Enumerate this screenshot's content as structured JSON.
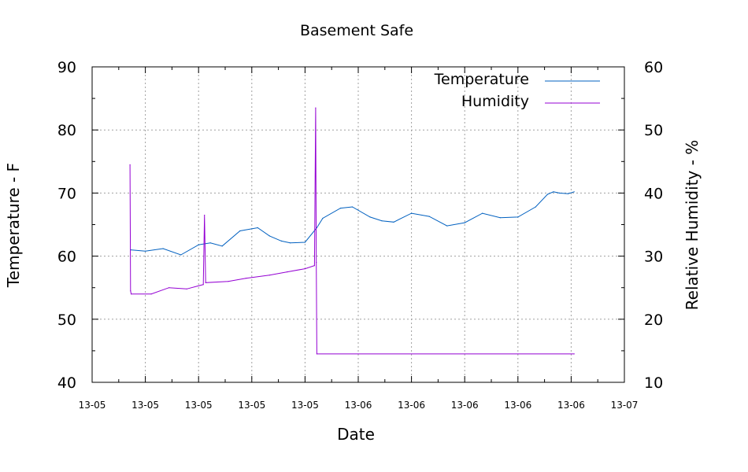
{
  "chart_data": {
    "type": "line",
    "title": "Basement Safe",
    "xlabel": "Date",
    "ylabel": "Temperature - F",
    "y2label": "Relative Humidity - %",
    "ylim": [
      40,
      90
    ],
    "y2lim": [
      10,
      60
    ],
    "yticks": [
      40,
      50,
      60,
      70,
      80,
      90
    ],
    "y2ticks": [
      10,
      20,
      30,
      40,
      50,
      60
    ],
    "xticks": [
      "13-05",
      "13-05",
      "13-05",
      "13-05",
      "13-05",
      "13-06",
      "13-06",
      "13-06",
      "13-06",
      "13-06",
      "13-07"
    ],
    "xlim": [
      0,
      9
    ],
    "grid": true,
    "legend_position": "top-right",
    "series": [
      {
        "name": "Temperature",
        "axis": "left",
        "color": "#0060c0",
        "x": [
          0.65,
          0.9,
          1.2,
          1.5,
          1.8,
          2.0,
          2.2,
          2.5,
          2.8,
          3.0,
          3.2,
          3.35,
          3.6,
          3.8,
          3.9,
          4.2,
          4.4,
          4.7,
          4.9,
          5.1,
          5.4,
          5.7,
          6.0,
          6.3,
          6.6,
          6.9,
          7.2,
          7.5,
          7.7,
          7.8,
          7.9,
          8.05,
          8.15
        ],
        "y": [
          61.0,
          60.8,
          61.2,
          60.2,
          61.8,
          62.1,
          61.6,
          64.0,
          64.5,
          63.2,
          62.4,
          62.1,
          62.2,
          64.5,
          66.0,
          67.6,
          67.8,
          66.2,
          65.6,
          65.4,
          66.8,
          66.3,
          64.8,
          65.3,
          66.8,
          66.1,
          66.2,
          67.8,
          69.8,
          70.2,
          70.0,
          69.9,
          70.2
        ]
      },
      {
        "name": "Humidity",
        "axis": "right",
        "color": "#9400d3",
        "x": [
          0.64,
          0.65,
          0.66,
          1.0,
          1.3,
          1.6,
          1.88,
          1.9,
          1.92,
          2.3,
          2.6,
          3.0,
          3.3,
          3.6,
          3.76,
          3.78,
          3.79,
          3.8,
          8.15
        ],
        "y": [
          44.5,
          24.5,
          24.0,
          24.0,
          25.0,
          24.8,
          25.5,
          36.5,
          25.8,
          26.0,
          26.5,
          27.0,
          27.5,
          28.0,
          28.5,
          53.5,
          29.0,
          14.5,
          14.5
        ]
      }
    ]
  }
}
